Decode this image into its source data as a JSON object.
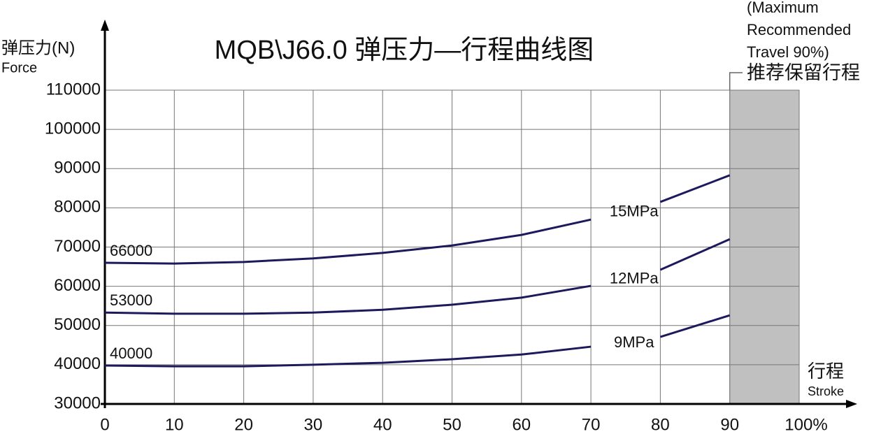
{
  "chart_data": {
    "type": "line",
    "title": "MQB\\J66.0 弹压力—行程曲线图",
    "y_label": "弹压力(N)",
    "y_label_en": "Force",
    "x_label": "行程",
    "x_label_en": "Stroke",
    "x": [
      0,
      10,
      20,
      30,
      40,
      50,
      60,
      70,
      75,
      80,
      90
    ],
    "series": [
      {
        "name": "15MPa",
        "color": "#1c1a5c",
        "values": [
          66000,
          65800,
          66200,
          67100,
          68500,
          70400,
          73100,
          77000,
          null,
          81500,
          88300
        ]
      },
      {
        "name": "12MPa",
        "color": "#1c1a5c",
        "values": [
          53300,
          53000,
          53000,
          53300,
          54000,
          55300,
          57100,
          60100,
          null,
          64200,
          72000
        ]
      },
      {
        "name": "9MPa",
        "color": "#1c1a5c",
        "values": [
          39800,
          39600,
          39600,
          40000,
          40500,
          41400,
          42600,
          44600,
          null,
          47100,
          52600
        ]
      }
    ],
    "annotations": [
      "66000",
      "53000",
      "40000"
    ],
    "recommended_range": [
      90,
      100
    ],
    "recommended_labels": [
      "(Maximum",
      "Recommended",
      " Travel 90%)",
      "推荐保留行程"
    ],
    "xlim": [
      0,
      100
    ],
    "xticks": [
      0,
      10,
      20,
      30,
      40,
      50,
      60,
      70,
      80,
      90,
      {
        "value": 100,
        "label": "100%"
      }
    ],
    "ylim": [
      30000,
      110000
    ],
    "yticks": [
      30000,
      40000,
      50000,
      60000,
      70000,
      80000,
      90000,
      100000,
      110000
    ],
    "grid": true
  }
}
